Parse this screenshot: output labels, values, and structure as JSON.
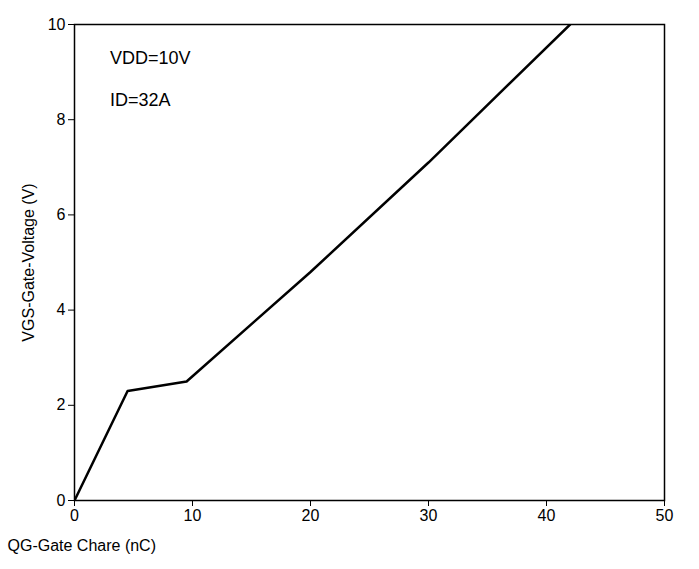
{
  "chart_data": {
    "type": "line",
    "x_label": "QG-Gate Chare (nC)",
    "y_label": "VGS-Gate-Voltage (V)",
    "x": [
      0,
      4.5,
      9.5,
      20,
      30,
      42
    ],
    "series": [
      {
        "name": "VGS",
        "color": "#000000",
        "values": [
          0,
          2.3,
          2.5,
          4.8,
          7.1,
          10
        ]
      }
    ],
    "xlim": [
      0,
      50
    ],
    "xticks": [
      0,
      10,
      20,
      30,
      40,
      50
    ],
    "ylim": [
      0,
      10
    ],
    "yticks": [
      0,
      2,
      4,
      6,
      8,
      10
    ],
    "annotations": [
      {
        "text": "VDD=10V",
        "x": 3,
        "y": 9.3
      },
      {
        "text": "ID=32A",
        "x": 3,
        "y": 8.4
      }
    ],
    "grid": false
  }
}
